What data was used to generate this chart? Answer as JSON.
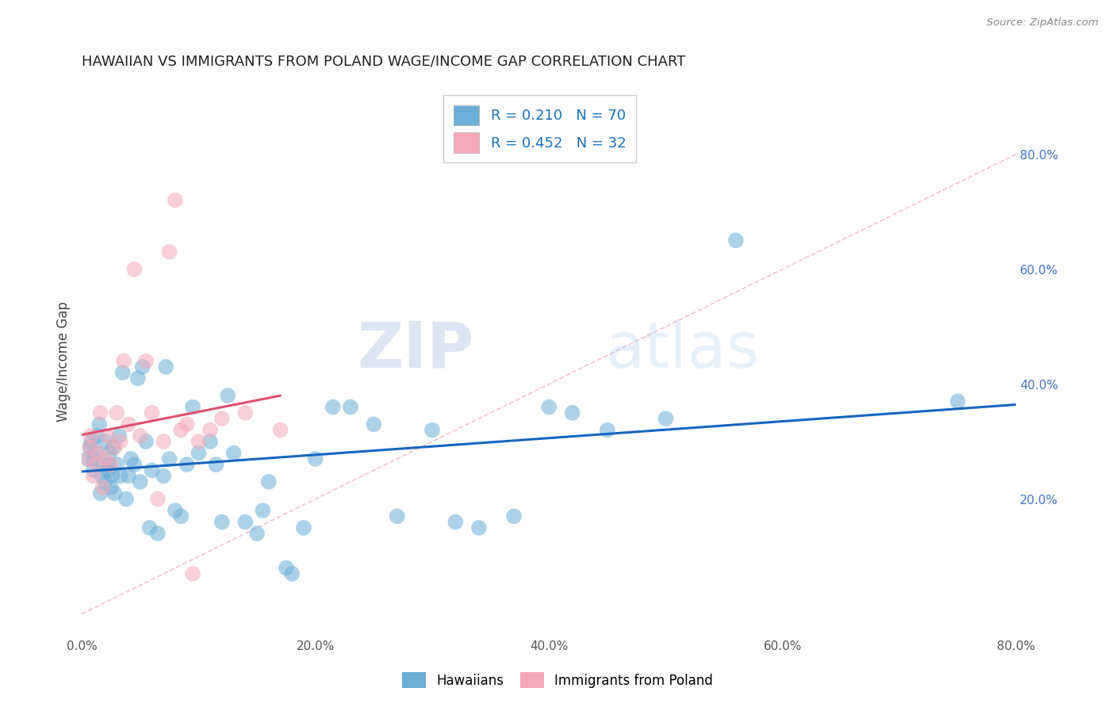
{
  "title": "HAWAIIAN VS IMMIGRANTS FROM POLAND WAGE/INCOME GAP CORRELATION CHART",
  "source": "Source: ZipAtlas.com",
  "ylabel": "Wage/Income Gap",
  "xlim": [
    0.0,
    0.8
  ],
  "ylim": [
    -0.04,
    0.92
  ],
  "xticks": [
    0.0,
    0.2,
    0.4,
    0.6,
    0.8
  ],
  "xticklabels": [
    "0.0%",
    "20.0%",
    "40.0%",
    "60.0%",
    "80.0%"
  ],
  "yticks_right": [
    0.2,
    0.4,
    0.6,
    0.8
  ],
  "ytick_right_labels": [
    "20.0%",
    "40.0%",
    "60.0%",
    "80.0%"
  ],
  "hawaiians_color": "#6baed6",
  "poland_color": "#f4a9bb",
  "hawaii_line_color": "#1565C0",
  "poland_line_color": "#e05070",
  "diagonal_color": "#cccccc",
  "background_color": "#ffffff",
  "grid_color": "#dddddd",
  "watermark_zip": "ZIP",
  "watermark_atlas": "atlas",
  "hawaiians_x": [
    0.005,
    0.007,
    0.008,
    0.01,
    0.01,
    0.012,
    0.013,
    0.015,
    0.016,
    0.017,
    0.018,
    0.02,
    0.02,
    0.022,
    0.023,
    0.024,
    0.025,
    0.026,
    0.027,
    0.028,
    0.03,
    0.032,
    0.033,
    0.035,
    0.038,
    0.04,
    0.042,
    0.045,
    0.048,
    0.05,
    0.052,
    0.055,
    0.058,
    0.06,
    0.065,
    0.07,
    0.072,
    0.075,
    0.08,
    0.085,
    0.09,
    0.095,
    0.1,
    0.11,
    0.115,
    0.12,
    0.125,
    0.13,
    0.14,
    0.15,
    0.155,
    0.16,
    0.175,
    0.18,
    0.19,
    0.2,
    0.215,
    0.23,
    0.25,
    0.27,
    0.3,
    0.32,
    0.34,
    0.37,
    0.4,
    0.42,
    0.45,
    0.5,
    0.56,
    0.75
  ],
  "hawaiians_y": [
    0.27,
    0.29,
    0.3,
    0.25,
    0.27,
    0.28,
    0.31,
    0.33,
    0.21,
    0.24,
    0.26,
    0.3,
    0.23,
    0.25,
    0.26,
    0.28,
    0.22,
    0.24,
    0.29,
    0.21,
    0.26,
    0.31,
    0.24,
    0.42,
    0.2,
    0.24,
    0.27,
    0.26,
    0.41,
    0.23,
    0.43,
    0.3,
    0.15,
    0.25,
    0.14,
    0.24,
    0.43,
    0.27,
    0.18,
    0.17,
    0.26,
    0.36,
    0.28,
    0.3,
    0.26,
    0.16,
    0.38,
    0.28,
    0.16,
    0.14,
    0.18,
    0.23,
    0.08,
    0.07,
    0.15,
    0.27,
    0.36,
    0.36,
    0.33,
    0.17,
    0.32,
    0.16,
    0.15,
    0.17,
    0.36,
    0.35,
    0.32,
    0.34,
    0.65,
    0.37
  ],
  "poland_x": [
    0.005,
    0.007,
    0.008,
    0.01,
    0.012,
    0.014,
    0.016,
    0.018,
    0.02,
    0.022,
    0.025,
    0.028,
    0.03,
    0.033,
    0.036,
    0.04,
    0.045,
    0.05,
    0.055,
    0.06,
    0.065,
    0.07,
    0.075,
    0.08,
    0.085,
    0.09,
    0.095,
    0.1,
    0.11,
    0.12,
    0.14,
    0.17
  ],
  "poland_y": [
    0.27,
    0.29,
    0.31,
    0.24,
    0.26,
    0.28,
    0.35,
    0.22,
    0.27,
    0.31,
    0.26,
    0.29,
    0.35,
    0.3,
    0.44,
    0.33,
    0.6,
    0.31,
    0.44,
    0.35,
    0.2,
    0.3,
    0.63,
    0.72,
    0.32,
    0.33,
    0.07,
    0.3,
    0.32,
    0.34,
    0.35,
    0.32
  ]
}
